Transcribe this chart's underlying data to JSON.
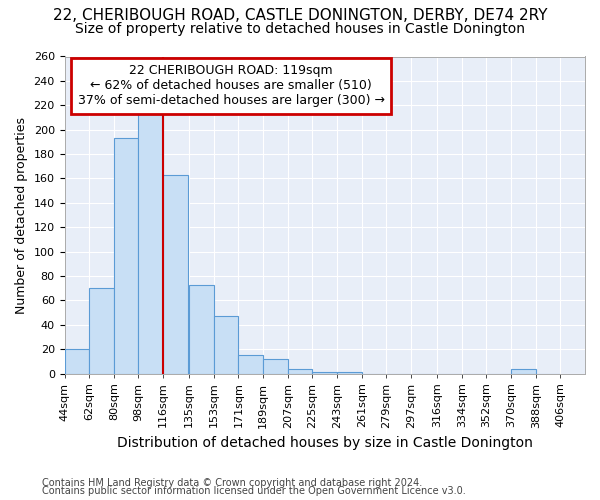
{
  "title1": "22, CHERIBOUGH ROAD, CASTLE DONINGTON, DERBY, DE74 2RY",
  "title2": "Size of property relative to detached houses in Castle Donington",
  "xlabel": "Distribution of detached houses by size in Castle Donington",
  "ylabel": "Number of detached properties",
  "footnote1": "Contains HM Land Registry data © Crown copyright and database right 2024.",
  "footnote2": "Contains public sector information licensed under the Open Government Licence v3.0.",
  "bar_left_edges": [
    44,
    62,
    80,
    98,
    116,
    135,
    153,
    171,
    189,
    207,
    225,
    243,
    261,
    279,
    297,
    316,
    334,
    352,
    370,
    388
  ],
  "bar_heights": [
    20,
    70,
    193,
    213,
    163,
    73,
    47,
    15,
    12,
    4,
    1,
    1,
    0,
    0,
    0,
    0,
    0,
    0,
    4,
    0
  ],
  "bar_widths": [
    18,
    18,
    18,
    18,
    18,
    18,
    18,
    18,
    18,
    18,
    18,
    18,
    18,
    18,
    18,
    18,
    18,
    18,
    18,
    18
  ],
  "tick_labels": [
    "44sqm",
    "62sqm",
    "80sqm",
    "98sqm",
    "116sqm",
    "135sqm",
    "153sqm",
    "171sqm",
    "189sqm",
    "207sqm",
    "225sqm",
    "243sqm",
    "261sqm",
    "279sqm",
    "297sqm",
    "316sqm",
    "334sqm",
    "352sqm",
    "370sqm",
    "388sqm",
    "406sqm"
  ],
  "tick_positions": [
    44,
    62,
    80,
    98,
    116,
    135,
    153,
    171,
    189,
    207,
    225,
    243,
    261,
    279,
    297,
    316,
    334,
    352,
    370,
    388,
    406
  ],
  "bar_color": "#c8dff5",
  "bar_edge_color": "#5b9bd5",
  "vline_x": 116,
  "vline_color": "#cc0000",
  "annotation_text": "22 CHERIBOUGH ROAD: 119sqm\n← 62% of detached houses are smaller (510)\n37% of semi-detached houses are larger (300) →",
  "annotation_box_color": "#cc0000",
  "ylim": [
    0,
    260
  ],
  "xlim": [
    44,
    424
  ],
  "bg_color": "#ffffff",
  "plot_bg_color": "#e8eef8",
  "grid_color": "#ffffff",
  "title1_fontsize": 11,
  "title2_fontsize": 10,
  "xlabel_fontsize": 10,
  "ylabel_fontsize": 9,
  "tick_fontsize": 8,
  "annot_fontsize": 9
}
